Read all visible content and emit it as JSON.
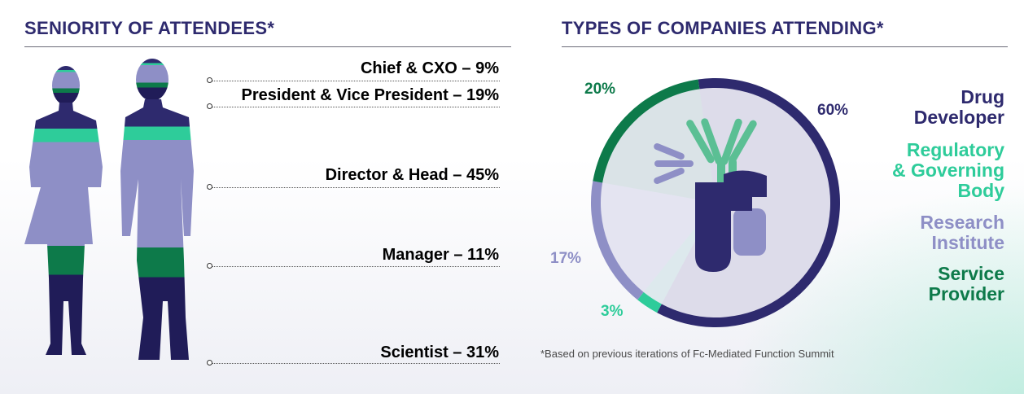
{
  "seniority": {
    "title": "SENIORITY OF ATTENDEES*",
    "levels": [
      {
        "label": "Chief & CXO – 9%",
        "name": "Chief & CXO",
        "value": 9,
        "color": "#2e2a6e"
      },
      {
        "label": "President & Vice President – 19%",
        "name": "President & Vice President",
        "value": 19,
        "color": "#2ecc9a"
      },
      {
        "label": "Director & Head – 45%",
        "name": "Director & Head",
        "value": 45,
        "color": "#8e8fc6"
      },
      {
        "label": "Manager – 11%",
        "name": "Manager",
        "value": 11,
        "color": "#0d7a4a"
      },
      {
        "label": "Scientist – 31%",
        "name": "Scientist",
        "value": 31,
        "color": "#201c58"
      }
    ]
  },
  "companies": {
    "title": "TYPES OF COMPANIES ATTENDING*",
    "legend": [
      {
        "label": "Drug\nDeveloper",
        "color": "#2e2a6e"
      },
      {
        "label": "Regulatory\n& Governing\nBody",
        "color": "#2ecc9a"
      },
      {
        "label": "Research\nInstitute",
        "color": "#8e8fc6"
      },
      {
        "label": "Service\nProvider",
        "color": "#0d7a4a"
      }
    ]
  },
  "chart_data": [
    {
      "type": "bar",
      "title": "SENIORITY OF ATTENDEES*",
      "categories": [
        "Chief & CXO",
        "President & Vice President",
        "Director & Head",
        "Manager",
        "Scientist"
      ],
      "values": [
        9,
        19,
        45,
        11,
        31
      ],
      "unit": "%"
    },
    {
      "type": "pie",
      "title": "TYPES OF COMPANIES ATTENDING*",
      "categories": [
        "Drug Developer",
        "Regulatory & Governing Body",
        "Research Institute",
        "Service Provider"
      ],
      "values": [
        60,
        3,
        17,
        20
      ],
      "value_labels": [
        "60%",
        "3%",
        "17%",
        "20%"
      ],
      "colors": [
        "#2e2a6e",
        "#2ecc9a",
        "#8e8fc6",
        "#0d7a4a"
      ]
    }
  ],
  "footnote": "*Based on previous iterations of Fc-Mediated Function Summit"
}
